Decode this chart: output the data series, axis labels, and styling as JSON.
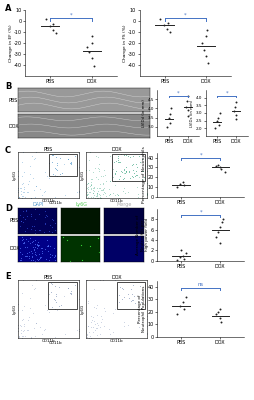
{
  "panel_A_left": {
    "ylabel": "Change in EF (%)",
    "pbs_values": [
      2,
      -3,
      -5,
      -8,
      -11
    ],
    "dox_values": [
      -14,
      -20,
      -24,
      -28,
      -34,
      -41
    ],
    "pbs_mean": -5,
    "dox_mean": -27,
    "ylim": [
      -50,
      10
    ],
    "yticks": [
      10,
      0,
      -10,
      -20,
      -30,
      -40
    ],
    "pvalue": "*"
  },
  "panel_A_right": {
    "ylabel": "Change in FS (%)",
    "pbs_values": [
      2,
      -2,
      -4,
      -7,
      -10
    ],
    "dox_values": [
      -8,
      -14,
      -20,
      -26,
      -32,
      -38
    ],
    "pbs_mean": -4,
    "dox_mean": -23,
    "ylim": [
      -50,
      10
    ],
    "yticks": [
      10,
      0,
      -10,
      -20,
      -30,
      -40
    ],
    "pvalue": "*"
  },
  "panel_B_left": {
    "ylabel": "LVIDd (in mm)",
    "pbs_values": [
      3.0,
      3.2,
      3.5,
      3.7,
      4.0
    ],
    "dox_values": [
      3.6,
      3.9,
      4.1,
      4.4,
      4.7
    ],
    "pbs_mean": 3.4,
    "dox_mean": 4.1,
    "ylim": [
      2.5,
      5.0
    ],
    "yticks": [
      3.0,
      3.5,
      4.0,
      4.5
    ],
    "pvalue": "*"
  },
  "panel_B_right": {
    "ylabel": "LVIDs (in mm)",
    "pbs_values": [
      2.0,
      2.2,
      2.5,
      2.7,
      3.0
    ],
    "dox_values": [
      2.6,
      2.9,
      3.1,
      3.4,
      3.7
    ],
    "pbs_mean": 2.4,
    "dox_mean": 3.1,
    "ylim": [
      1.5,
      4.5
    ],
    "yticks": [
      2.0,
      2.5,
      3.0,
      3.5,
      4.0
    ],
    "pvalue": "*"
  },
  "panel_C": {
    "ylabel": "Percentage of Neutrophils",
    "pbs_values": [
      10,
      12,
      13,
      15
    ],
    "dox_values": [
      25,
      28,
      30,
      32,
      33
    ],
    "pbs_mean": 12.5,
    "dox_mean": 30,
    "ylim": [
      0,
      45
    ],
    "yticks": [
      0,
      10,
      20,
      30,
      40
    ],
    "pvalue": "*"
  },
  "panel_D": {
    "ylabel": "Average Number of\nNeutrophils per\nhigh power field",
    "pbs_values": [
      0.2,
      0.4,
      0.8,
      1.0,
      1.5,
      2.0
    ],
    "dox_values": [
      3.5,
      4.5,
      5.5,
      6.5,
      7.5,
      8.0
    ],
    "pbs_mean": 0.9,
    "dox_mean": 6.0,
    "ylim": [
      0,
      10
    ],
    "yticks": [
      0,
      2,
      4,
      6,
      8
    ],
    "pvalue": "*"
  },
  "panel_E": {
    "ylabel": "Percentage of\nNeutrophil Populations",
    "pbs_values": [
      18,
      22,
      25,
      28,
      32
    ],
    "dox_values": [
      12,
      15,
      18,
      20,
      22
    ],
    "pbs_mean": 25,
    "dox_mean": 17,
    "ylim": [
      0,
      45
    ],
    "yticks": [
      0,
      10,
      20,
      30,
      40
    ],
    "pvalue": "ns"
  },
  "colors": {
    "dots": "#222222",
    "mean_line": "#222222",
    "bracket_color": "#4472C4",
    "background": "#ffffff",
    "fcs_bg": "#f0f4f8",
    "fcs_dots_pbs": "#5599cc",
    "fcs_dots_dox": "#44aa88",
    "echo_bg_pbs": "#888888",
    "echo_bg_dox": "#666666",
    "dapi_color": "#000055",
    "ly6g_color": "#001500",
    "merge_color": "#000040"
  },
  "xlabel_pbs": "PBS",
  "xlabel_dox": "DOX",
  "labels": [
    "A",
    "B",
    "C",
    "D",
    "E"
  ]
}
